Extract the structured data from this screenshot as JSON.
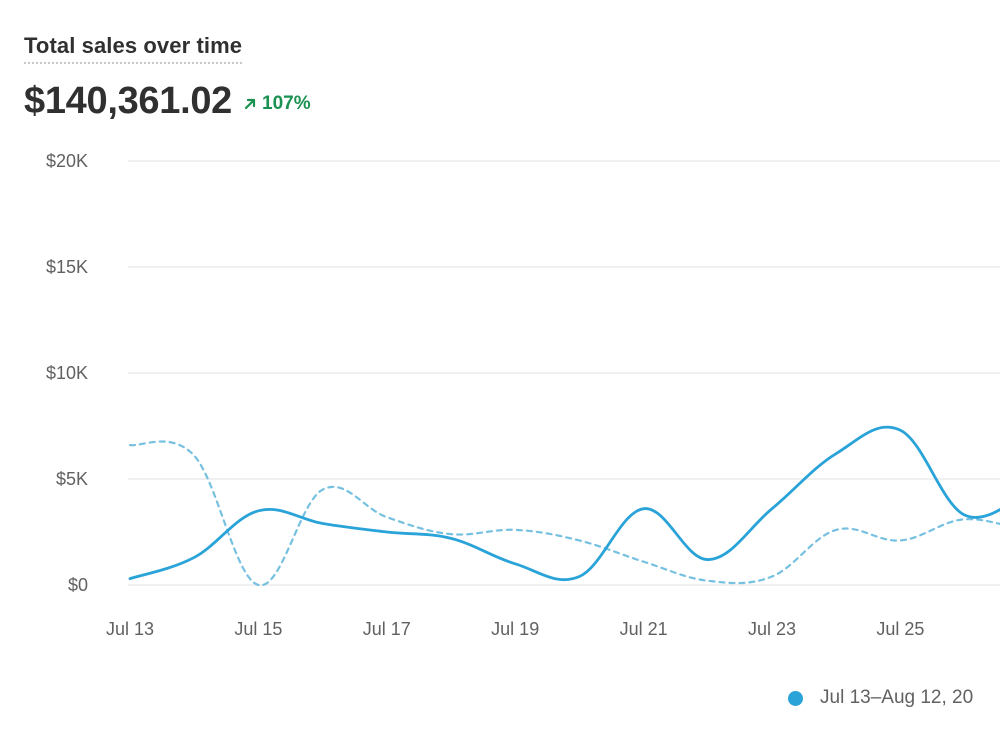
{
  "header": {
    "title": "Total sales over time",
    "total": "$140,361.02",
    "change": "107%"
  },
  "colors": {
    "primary": "#29a3d8",
    "comparison": "#76c0e0",
    "positive": "#1a9150",
    "grid": "#ebebeb"
  },
  "chart_data": {
    "type": "line",
    "title": "Total sales over time",
    "xlabel": "",
    "ylabel": "",
    "ylim": [
      0,
      20000
    ],
    "y_ticks": [
      "$0",
      "$5K",
      "$10K",
      "$15K",
      "$20K"
    ],
    "y_tick_values": [
      0,
      5000,
      10000,
      15000,
      20000
    ],
    "x_ticks": [
      "Jul 13",
      "Jul 15",
      "Jul 17",
      "Jul 19",
      "Jul 21",
      "Jul 23",
      "Jul 25"
    ],
    "x": [
      "Jul 13",
      "Jul 14",
      "Jul 15",
      "Jul 16",
      "Jul 17",
      "Jul 18",
      "Jul 19",
      "Jul 20",
      "Jul 21",
      "Jul 22",
      "Jul 23",
      "Jul 24",
      "Jul 25",
      "Jul 26",
      "Jul 27"
    ],
    "grid": true,
    "legend_position": "bottom-right",
    "series": [
      {
        "name": "Jul 13–Aug 12, 20",
        "style": "solid",
        "values": [
          300,
          1300,
          3500,
          2900,
          2500,
          2200,
          1000,
          400,
          3600,
          1200,
          3600,
          6200,
          7300,
          3300,
          4400
        ]
      },
      {
        "style": "dashed",
        "values": [
          6600,
          6100,
          0,
          4500,
          3200,
          2400,
          2600,
          2100,
          1100,
          200,
          400,
          2600,
          2100,
          3100,
          2500
        ]
      }
    ]
  }
}
